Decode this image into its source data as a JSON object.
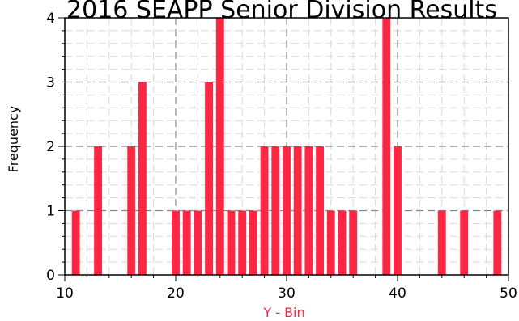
{
  "chart_data": {
    "type": "bar",
    "title": "2016 SEAPP Senior Division Results",
    "xlabel": "Y - Bin",
    "ylabel": "Frequency",
    "xlim": [
      10,
      50
    ],
    "ylim": [
      0,
      4
    ],
    "x_ticks": [
      "10",
      "20",
      "30",
      "40",
      "50"
    ],
    "y_ticks": [
      "0",
      "1",
      "2",
      "3",
      "4"
    ],
    "grid": true,
    "colors": {
      "bar": "#ff2644",
      "xlabel": "#ff2644",
      "grid_major": "#888888",
      "grid_minor": "#d8d8d8"
    },
    "bins": [
      {
        "x": 11,
        "y": 1
      },
      {
        "x": 13,
        "y": 2
      },
      {
        "x": 16,
        "y": 2
      },
      {
        "x": 17,
        "y": 3
      },
      {
        "x": 20,
        "y": 1
      },
      {
        "x": 21,
        "y": 1
      },
      {
        "x": 22,
        "y": 1
      },
      {
        "x": 23,
        "y": 3
      },
      {
        "x": 24,
        "y": 4
      },
      {
        "x": 25,
        "y": 1
      },
      {
        "x": 26,
        "y": 1
      },
      {
        "x": 27,
        "y": 1
      },
      {
        "x": 28,
        "y": 2
      },
      {
        "x": 29,
        "y": 2
      },
      {
        "x": 30,
        "y": 2
      },
      {
        "x": 31,
        "y": 2
      },
      {
        "x": 32,
        "y": 2
      },
      {
        "x": 33,
        "y": 2
      },
      {
        "x": 34,
        "y": 1
      },
      {
        "x": 35,
        "y": 1
      },
      {
        "x": 36,
        "y": 1
      },
      {
        "x": 39,
        "y": 4
      },
      {
        "x": 40,
        "y": 2
      },
      {
        "x": 44,
        "y": 1
      },
      {
        "x": 46,
        "y": 1
      },
      {
        "x": 49,
        "y": 1
      }
    ]
  }
}
